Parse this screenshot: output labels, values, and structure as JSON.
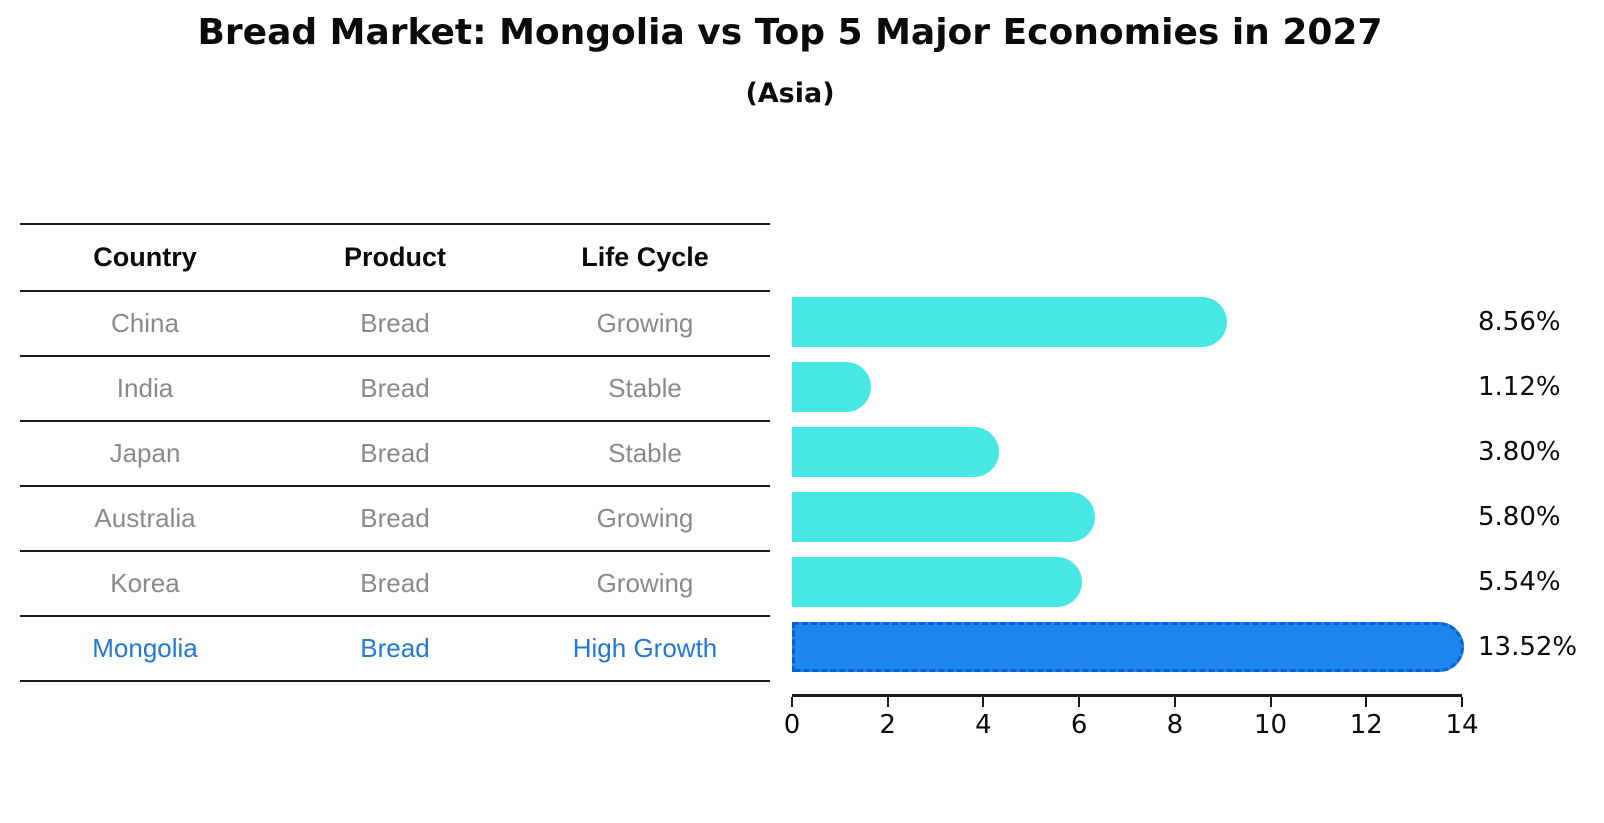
{
  "title": "Bread Market: Mongolia vs Top 5 Major Economies in 2027",
  "subtitle": "(Asia)",
  "table": {
    "headers": [
      "Country",
      "Product",
      "Life Cycle"
    ],
    "rows": [
      {
        "country": "China",
        "product": "Bread",
        "life_cycle": "Growing",
        "highlight": false
      },
      {
        "country": "India",
        "product": "Bread",
        "life_cycle": "Stable",
        "highlight": false
      },
      {
        "country": "Japan",
        "product": "Bread",
        "life_cycle": "Stable",
        "highlight": false
      },
      {
        "country": "Australia",
        "product": "Bread",
        "life_cycle": "Growing",
        "highlight": false
      },
      {
        "country": "Korea",
        "product": "Bread",
        "life_cycle": "Growing",
        "highlight": false
      },
      {
        "country": "Mongolia",
        "product": "Bread",
        "life_cycle": "High Growth",
        "highlight": true
      }
    ]
  },
  "chart_data": {
    "type": "bar",
    "orientation": "horizontal",
    "title": "Bread Market: Mongolia vs Top 5 Major Economies in 2027",
    "subtitle": "(Asia)",
    "categories": [
      "China",
      "India",
      "Japan",
      "Australia",
      "Korea",
      "Mongolia"
    ],
    "values": [
      8.56,
      1.12,
      3.8,
      5.8,
      5.54,
      13.52
    ],
    "value_labels": [
      "8.56%",
      "1.12%",
      "3.80%",
      "5.80%",
      "5.54%",
      "13.52%"
    ],
    "xlim": [
      0,
      14
    ],
    "xticks": [
      0,
      2,
      4,
      6,
      8,
      10,
      12,
      14
    ],
    "xlabel": "",
    "ylabel": "",
    "grid": false,
    "legend": false,
    "highlight_index": 5,
    "bar_color": "#46e7e4",
    "highlight_color": "#1e87ee",
    "highlight_border_color": "#0a5fd3"
  },
  "colors": {
    "title_text": "#0a0a0a",
    "row_text": "#8a8a8a",
    "highlight_text": "#2577d6",
    "line": "#1a1a1a"
  }
}
